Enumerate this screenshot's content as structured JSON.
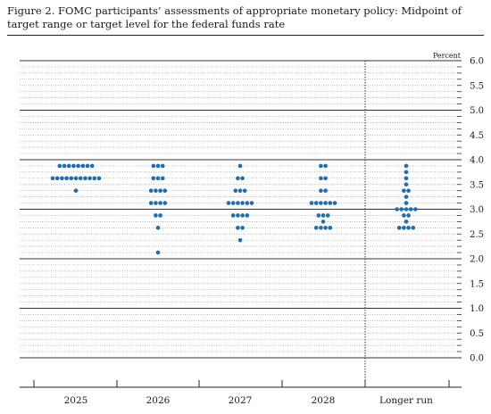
{
  "figure": {
    "title": "Figure 2. FOMC participants’ assessments of appropriate monetary policy: Midpoint of target range or target level for the federal funds rate"
  },
  "chart_data": {
    "type": "scatter",
    "subtype": "dot plot",
    "title": "Figure 2. FOMC participants’ assessments of appropriate monetary policy: Midpoint of target range or target level for the federal funds rate",
    "unit_label": "Percent",
    "ylim": [
      0,
      6.0
    ],
    "y_ticks": [
      "6.0",
      "5.5",
      "5.0",
      "4.5",
      "4.0",
      "3.5",
      "3.0",
      "2.5",
      "2.0",
      "1.5",
      "1.0",
      "0.5",
      "0.0"
    ],
    "categories": [
      "2025",
      "2026",
      "2027",
      "2028",
      "Longer run"
    ],
    "dot_color": "#1f6fb0",
    "grid": "solid lines at whole percents, dotted lines at intermediate eighths",
    "divider_before": "Longer run",
    "series": [
      {
        "category": "2025",
        "points": [
          {
            "y": 3.875,
            "count": 8
          },
          {
            "y": 3.625,
            "count": 11
          },
          {
            "y": 3.375,
            "count": 1
          }
        ]
      },
      {
        "category": "2026",
        "points": [
          {
            "y": 3.875,
            "count": 3
          },
          {
            "y": 3.625,
            "count": 3
          },
          {
            "y": 3.375,
            "count": 4
          },
          {
            "y": 3.125,
            "count": 4
          },
          {
            "y": 2.875,
            "count": 2
          },
          {
            "y": 2.625,
            "count": 1
          },
          {
            "y": 2.125,
            "count": 1
          }
        ]
      },
      {
        "category": "2027",
        "points": [
          {
            "y": 3.875,
            "count": 1
          },
          {
            "y": 3.625,
            "count": 2
          },
          {
            "y": 3.375,
            "count": 3
          },
          {
            "y": 3.125,
            "count": 6
          },
          {
            "y": 2.875,
            "count": 4
          },
          {
            "y": 2.625,
            "count": 2
          },
          {
            "y": 2.375,
            "count": 1
          }
        ]
      },
      {
        "category": "2028",
        "points": [
          {
            "y": 3.875,
            "count": 2
          },
          {
            "y": 3.625,
            "count": 2
          },
          {
            "y": 3.375,
            "count": 2
          },
          {
            "y": 3.125,
            "count": 6
          },
          {
            "y": 2.875,
            "count": 3
          },
          {
            "y": 2.75,
            "count": 1
          },
          {
            "y": 2.625,
            "count": 4
          }
        ]
      },
      {
        "category": "Longer run",
        "points": [
          {
            "y": 3.875,
            "count": 1
          },
          {
            "y": 3.75,
            "count": 1
          },
          {
            "y": 3.625,
            "count": 1
          },
          {
            "y": 3.5,
            "count": 1
          },
          {
            "y": 3.375,
            "count": 2
          },
          {
            "y": 3.25,
            "count": 1
          },
          {
            "y": 3.125,
            "count": 1
          },
          {
            "y": 3.0,
            "count": 5
          },
          {
            "y": 2.875,
            "count": 2
          },
          {
            "y": 2.75,
            "count": 1
          },
          {
            "y": 2.625,
            "count": 4
          }
        ]
      }
    ]
  }
}
